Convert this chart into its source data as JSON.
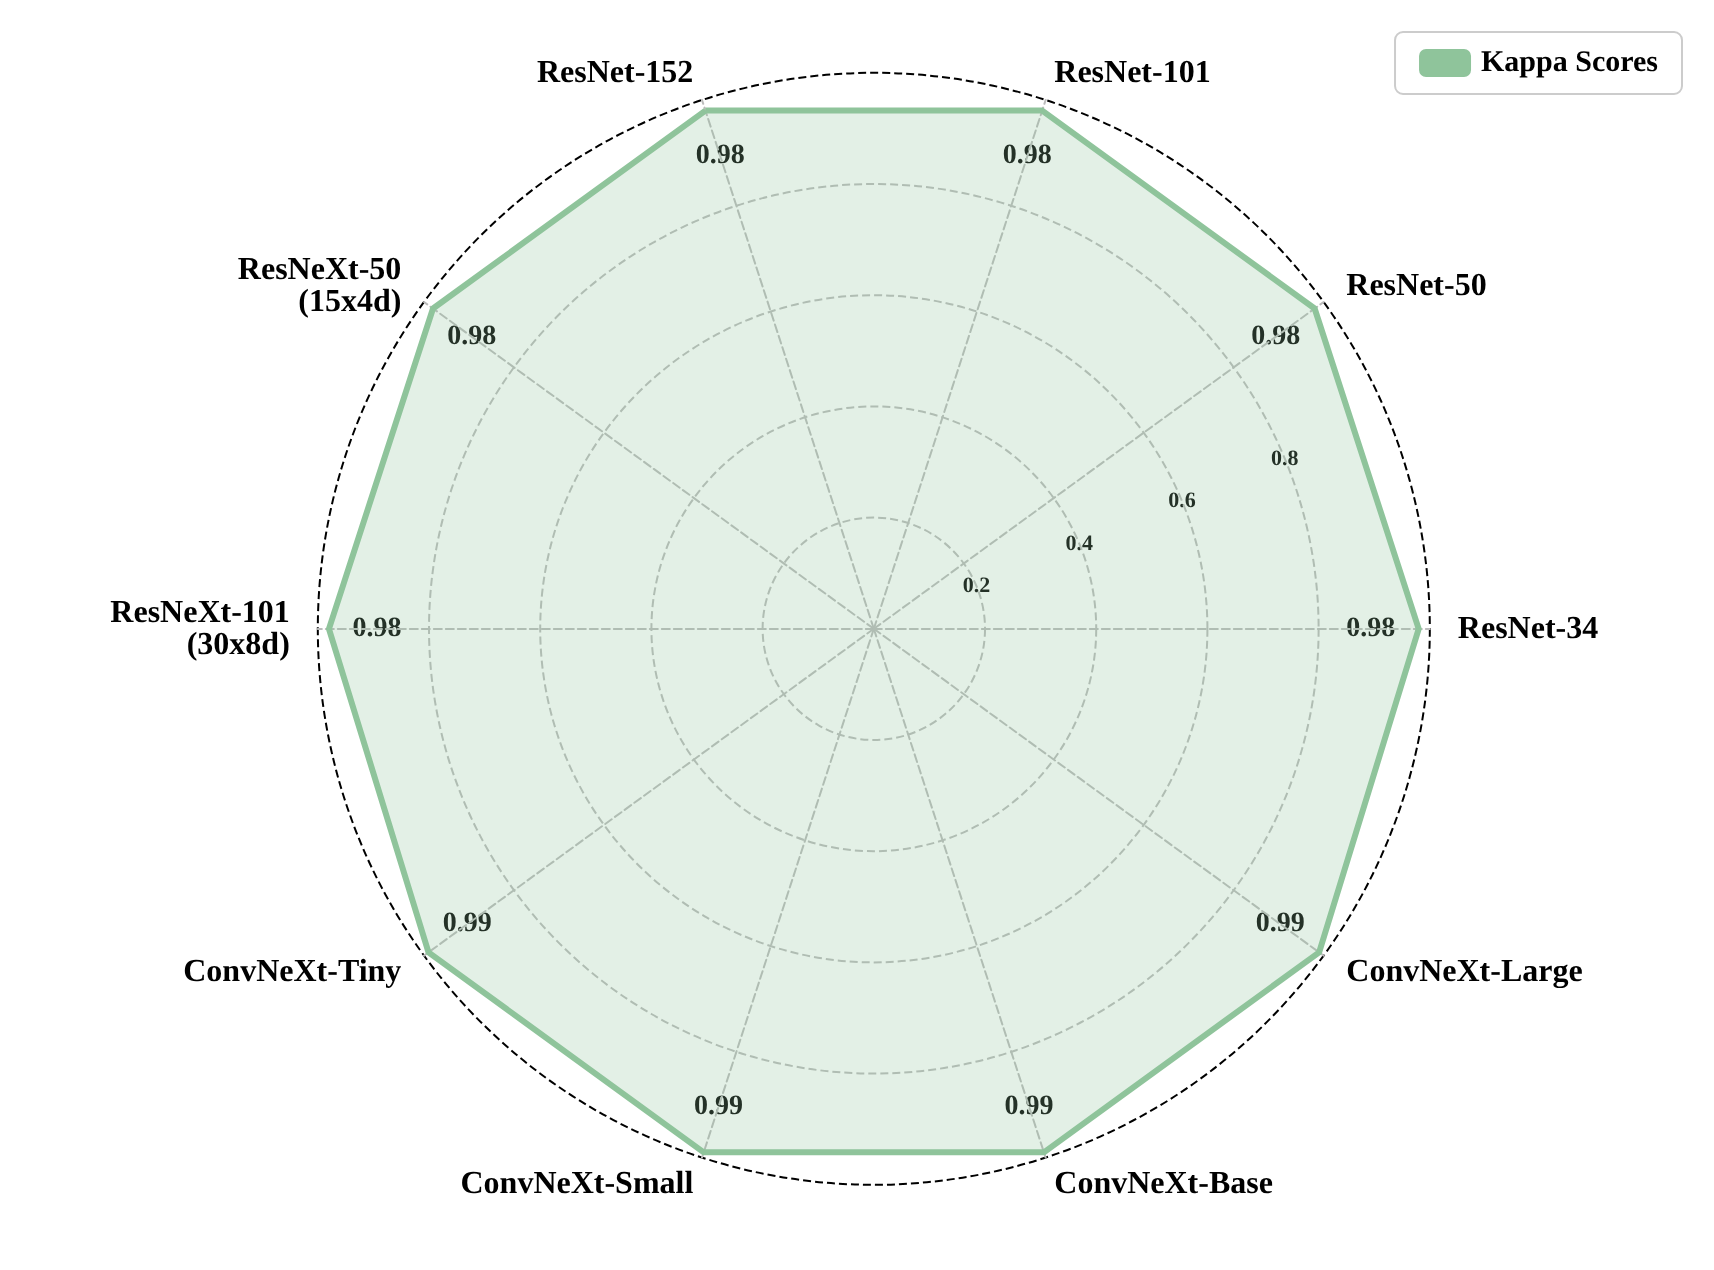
{
  "chart_data": {
    "type": "radar",
    "categories": [
      "ResNet-101",
      "ResNet-50",
      "ResNet-34",
      "ConvNeXt-Large",
      "ConvNeXt-Base",
      "ConvNeXt-Small",
      "ConvNeXt-Tiny",
      "ResNeXt-101\n(30x8d)",
      "ResNeXt-50\n(15x4d)",
      "ResNet-152"
    ],
    "series": [
      {
        "name": "Kappa Scores",
        "color": "#8fc49b",
        "values": [
          0.98,
          0.98,
          0.98,
          0.99,
          0.99,
          0.99,
          0.99,
          0.98,
          0.98,
          0.98
        ]
      }
    ],
    "ylim": [
      0,
      1
    ],
    "yticks": [
      0.2,
      0.4,
      0.6,
      0.8
    ],
    "grid": true,
    "legend": "top right",
    "data_labels": true
  }
}
